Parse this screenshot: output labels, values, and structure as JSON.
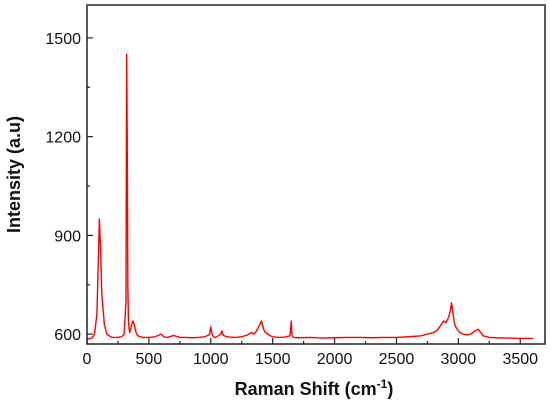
{
  "chart_data": {
    "type": "line",
    "title": "",
    "xlabel_text": "Raman Shift (cm",
    "xlabel_sup": "-1",
    "xlabel_close": ")",
    "ylabel": "Intensity (a.u)",
    "xlim": [
      0,
      3700
    ],
    "ylim": [
      570,
      1600
    ],
    "xticks": [
      0,
      500,
      1000,
      1500,
      2000,
      2500,
      3000,
      3500
    ],
    "yticks": [
      600,
      900,
      1200,
      1500
    ],
    "minor_xtick_step": 250,
    "minor_ytick_step": 150,
    "grid": false,
    "legend": false,
    "line_color": "#ff0000",
    "series": [
      {
        "x": [
          0,
          20,
          40,
          60,
          80,
          90,
          100,
          110,
          120,
          140,
          160,
          180,
          200,
          240,
          280,
          300,
          315,
          320,
          325,
          330,
          335,
          340,
          345,
          355,
          370,
          380,
          390,
          400,
          420,
          450,
          500,
          550,
          600,
          620,
          650,
          700,
          750,
          800,
          850,
          900,
          950,
          990,
          1000,
          1010,
          1020,
          1040,
          1060,
          1080,
          1090,
          1100,
          1120,
          1150,
          1200,
          1250,
          1300,
          1330,
          1350,
          1370,
          1390,
          1410,
          1420,
          1430,
          1440,
          1460,
          1480,
          1500,
          1550,
          1600,
          1640,
          1650,
          1655,
          1660,
          1670,
          1700,
          1800,
          1900,
          2000,
          2100,
          2200,
          2300,
          2400,
          2500,
          2600,
          2700,
          2750,
          2800,
          2830,
          2860,
          2880,
          2900,
          2920,
          2935,
          2945,
          2955,
          2965,
          2975,
          2990,
          3010,
          3040,
          3070,
          3100,
          3130,
          3160,
          3180,
          3200,
          3250,
          3300,
          3400,
          3500,
          3600
        ],
        "y": [
          585,
          586,
          588,
          598,
          660,
          800,
          950,
          860,
          720,
          630,
          600,
          595,
          590,
          590,
          592,
          600,
          700,
          1450,
          1200,
          740,
          640,
          615,
          605,
          620,
          640,
          632,
          615,
          600,
          593,
          590,
          590,
          592,
          600,
          592,
          590,
          596,
          590,
          590,
          589,
          590,
          592,
          598,
          622,
          600,
          592,
          590,
          595,
          600,
          610,
          597,
          593,
          591,
          590,
          592,
          598,
          605,
          600,
          610,
          625,
          640,
          625,
          612,
          605,
          600,
          595,
          592,
          590,
          591,
          595,
          640,
          600,
          593,
          590,
          589,
          590,
          588,
          589,
          590,
          590,
          589,
          590,
          590,
          592,
          595,
          600,
          605,
          612,
          628,
          640,
          635,
          650,
          670,
          695,
          670,
          640,
          625,
          615,
          605,
          600,
          598,
          600,
          608,
          615,
          605,
          595,
          590,
          589,
          588,
          587,
          587
        ]
      }
    ]
  }
}
